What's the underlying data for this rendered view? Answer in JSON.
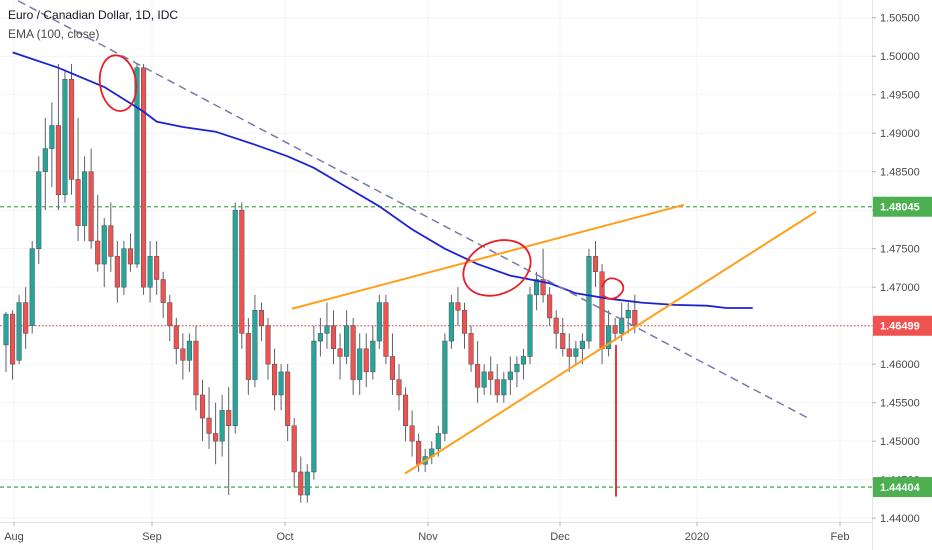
{
  "legend": {
    "title": "Euro / Canadian Dollar, 1D, IDC",
    "indicator": "EMA (100, close)"
  },
  "chart_data": {
    "type": "candlestick",
    "x_ticks": [
      "Aug",
      "Sep",
      "Oct",
      "Nov",
      "Dec",
      "2020",
      "Feb"
    ],
    "y_ticks": [
      "1.44000",
      "1.44500",
      "1.45000",
      "1.45500",
      "1.46000",
      "1.46500",
      "1.47000",
      "1.47500",
      "1.48000",
      "1.48500",
      "1.49000",
      "1.49500",
      "1.50000",
      "1.50500"
    ],
    "ylim": [
      1.4395,
      1.5073
    ],
    "price_tags": [
      {
        "label": "1.48045",
        "value": 1.48045,
        "color": "#4caf50",
        "line": "dashed-green"
      },
      {
        "label": "1.46499",
        "value": 1.46499,
        "color": "#ef5350",
        "line": "dotted-red"
      },
      {
        "label": "1.44404",
        "value": 1.44404,
        "color": "#4caf50",
        "line": "dashed-green"
      }
    ],
    "colors": {
      "up": "#26a69a",
      "down": "#ef5350",
      "ema": "#1e22d1",
      "trend": "#ff9f1a",
      "downtrend": "#7a7aa8",
      "annot": "#e5202a"
    },
    "ema": [
      [
        1,
        1.5005
      ],
      [
        8,
        1.4985
      ],
      [
        15,
        1.496
      ],
      [
        21,
        1.4928
      ],
      [
        23,
        1.4915
      ],
      [
        27,
        1.4908
      ],
      [
        32,
        1.4902
      ],
      [
        38,
        1.4885
      ],
      [
        43,
        1.487
      ],
      [
        47,
        1.4855
      ],
      [
        52,
        1.483
      ],
      [
        57,
        1.4805
      ],
      [
        62,
        1.4775
      ],
      [
        67,
        1.475
      ],
      [
        72,
        1.473
      ],
      [
        77,
        1.4715
      ],
      [
        83,
        1.4705
      ],
      [
        87,
        1.4692
      ],
      [
        92,
        1.4685
      ],
      [
        97,
        1.468
      ],
      [
        102,
        1.4677
      ],
      [
        107,
        1.4676
      ],
      [
        110,
        1.4673
      ],
      [
        114,
        1.4673
      ]
    ],
    "candles": [
      [
        0,
        1.4625,
        1.4668,
        1.459,
        1.4665
      ],
      [
        1,
        1.4665,
        1.467,
        1.458,
        1.46
      ],
      [
        2,
        1.4605,
        1.469,
        1.46,
        1.468
      ],
      [
        3,
        1.468,
        1.47,
        1.462,
        1.464
      ],
      [
        4,
        1.465,
        1.476,
        1.464,
        1.475
      ],
      [
        5,
        1.475,
        1.487,
        1.473,
        1.485
      ],
      [
        6,
        1.485,
        1.492,
        1.48,
        1.488
      ],
      [
        7,
        1.488,
        1.494,
        1.483,
        1.491
      ],
      [
        8,
        1.491,
        1.499,
        1.48,
        1.482
      ],
      [
        9,
        1.482,
        1.498,
        1.481,
        1.497
      ],
      [
        10,
        1.497,
        1.499,
        1.482,
        1.484
      ],
      [
        11,
        1.484,
        1.492,
        1.476,
        1.478
      ],
      [
        12,
        1.478,
        1.487,
        1.476,
        1.485
      ],
      [
        13,
        1.485,
        1.488,
        1.475,
        1.476
      ],
      [
        14,
        1.476,
        1.482,
        1.472,
        1.473
      ],
      [
        15,
        1.473,
        1.479,
        1.47,
        1.478
      ],
      [
        16,
        1.478,
        1.481,
        1.472,
        1.474
      ],
      [
        17,
        1.474,
        1.476,
        1.468,
        1.47
      ],
      [
        18,
        1.47,
        1.476,
        1.469,
        1.475
      ],
      [
        19,
        1.475,
        1.477,
        1.472,
        1.473
      ],
      [
        20,
        1.473,
        1.499,
        1.4725,
        1.4985
      ],
      [
        21,
        1.4985,
        1.499,
        1.469,
        1.47
      ],
      [
        22,
        1.47,
        1.476,
        1.468,
        1.474
      ],
      [
        23,
        1.474,
        1.476,
        1.469,
        1.471
      ],
      [
        24,
        1.471,
        1.472,
        1.466,
        1.468
      ],
      [
        25,
        1.468,
        1.469,
        1.463,
        1.465
      ],
      [
        26,
        1.465,
        1.466,
        1.46,
        1.462
      ],
      [
        27,
        1.462,
        1.464,
        1.458,
        1.4605
      ],
      [
        28,
        1.4605,
        1.464,
        1.459,
        1.463
      ],
      [
        29,
        1.463,
        1.465,
        1.454,
        1.456
      ],
      [
        30,
        1.456,
        1.458,
        1.45,
        1.453
      ],
      [
        31,
        1.453,
        1.457,
        1.449,
        1.451
      ],
      [
        32,
        1.451,
        1.455,
        1.447,
        1.45
      ],
      [
        33,
        1.45,
        1.456,
        1.448,
        1.454
      ],
      [
        34,
        1.454,
        1.457,
        1.443,
        1.452
      ],
      [
        35,
        1.452,
        1.481,
        1.451,
        1.48
      ],
      [
        36,
        1.48,
        1.481,
        1.462,
        1.464
      ],
      [
        37,
        1.464,
        1.466,
        1.456,
        1.458
      ],
      [
        38,
        1.458,
        1.469,
        1.457,
        1.467
      ],
      [
        39,
        1.467,
        1.468,
        1.463,
        1.465
      ],
      [
        40,
        1.465,
        1.466,
        1.458,
        1.46
      ],
      [
        41,
        1.46,
        1.462,
        1.454,
        1.456
      ],
      [
        42,
        1.456,
        1.46,
        1.454,
        1.459
      ],
      [
        43,
        1.459,
        1.46,
        1.45,
        1.452
      ],
      [
        44,
        1.452,
        1.453,
        1.444,
        1.446
      ],
      [
        45,
        1.446,
        1.448,
        1.442,
        1.443
      ],
      [
        46,
        1.443,
        1.447,
        1.442,
        1.446
      ],
      [
        47,
        1.446,
        1.465,
        1.445,
        1.463
      ],
      [
        48,
        1.463,
        1.466,
        1.461,
        1.464
      ],
      [
        49,
        1.464,
        1.468,
        1.462,
        1.465
      ],
      [
        50,
        1.465,
        1.467,
        1.46,
        1.462
      ],
      [
        51,
        1.462,
        1.464,
        1.458,
        1.461
      ],
      [
        52,
        1.461,
        1.467,
        1.46,
        1.465
      ],
      [
        53,
        1.465,
        1.466,
        1.456,
        1.458
      ],
      [
        54,
        1.458,
        1.464,
        1.456,
        1.462
      ],
      [
        55,
        1.462,
        1.464,
        1.457,
        1.459
      ],
      [
        56,
        1.459,
        1.465,
        1.458,
        1.463
      ],
      [
        57,
        1.463,
        1.469,
        1.462,
        1.468
      ],
      [
        58,
        1.468,
        1.469,
        1.46,
        1.461
      ],
      [
        59,
        1.461,
        1.464,
        1.456,
        1.458
      ],
      [
        60,
        1.458,
        1.46,
        1.454,
        1.456
      ],
      [
        61,
        1.456,
        1.457,
        1.45,
        1.452
      ],
      [
        62,
        1.452,
        1.454,
        1.448,
        1.45
      ],
      [
        63,
        1.45,
        1.451,
        1.446,
        1.447
      ],
      [
        64,
        1.447,
        1.449,
        1.446,
        1.448
      ],
      [
        65,
        1.448,
        1.45,
        1.447,
        1.449
      ],
      [
        66,
        1.449,
        1.452,
        1.448,
        1.451
      ],
      [
        67,
        1.451,
        1.464,
        1.45,
        1.463
      ],
      [
        68,
        1.463,
        1.469,
        1.462,
        1.468
      ],
      [
        69,
        1.468,
        1.47,
        1.465,
        1.467
      ],
      [
        70,
        1.467,
        1.468,
        1.462,
        1.464
      ],
      [
        71,
        1.464,
        1.465,
        1.459,
        1.46
      ],
      [
        72,
        1.46,
        1.463,
        1.455,
        1.457
      ],
      [
        73,
        1.457,
        1.46,
        1.456,
        1.459
      ],
      [
        74,
        1.459,
        1.461,
        1.456,
        1.458
      ],
      [
        75,
        1.458,
        1.46,
        1.455,
        1.456
      ],
      [
        76,
        1.456,
        1.459,
        1.455,
        1.458
      ],
      [
        77,
        1.458,
        1.461,
        1.456,
        1.459
      ],
      [
        78,
        1.459,
        1.461,
        1.457,
        1.46
      ],
      [
        79,
        1.46,
        1.462,
        1.458,
        1.461
      ],
      [
        80,
        1.461,
        1.47,
        1.46,
        1.469
      ],
      [
        81,
        1.469,
        1.472,
        1.467,
        1.471
      ],
      [
        82,
        1.471,
        1.475,
        1.468,
        1.469
      ],
      [
        83,
        1.469,
        1.47,
        1.465,
        1.466
      ],
      [
        84,
        1.466,
        1.467,
        1.462,
        1.464
      ],
      [
        85,
        1.464,
        1.466,
        1.461,
        1.462
      ],
      [
        86,
        1.462,
        1.464,
        1.459,
        1.461
      ],
      [
        87,
        1.461,
        1.463,
        1.46,
        1.462
      ],
      [
        88,
        1.462,
        1.464,
        1.46,
        1.463
      ],
      [
        89,
        1.463,
        1.475,
        1.462,
        1.474
      ],
      [
        90,
        1.474,
        1.476,
        1.47,
        1.472
      ],
      [
        91,
        1.472,
        1.473,
        1.46,
        1.462
      ],
      [
        92,
        1.462,
        1.467,
        1.461,
        1.465
      ],
      [
        93,
        1.465,
        1.466,
        1.463,
        1.464
      ],
      [
        94,
        1.464,
        1.468,
        1.463,
        1.466
      ],
      [
        95,
        1.466,
        1.468,
        1.464,
        1.467
      ],
      [
        96,
        1.467,
        1.469,
        1.464,
        1.465
      ]
    ]
  }
}
